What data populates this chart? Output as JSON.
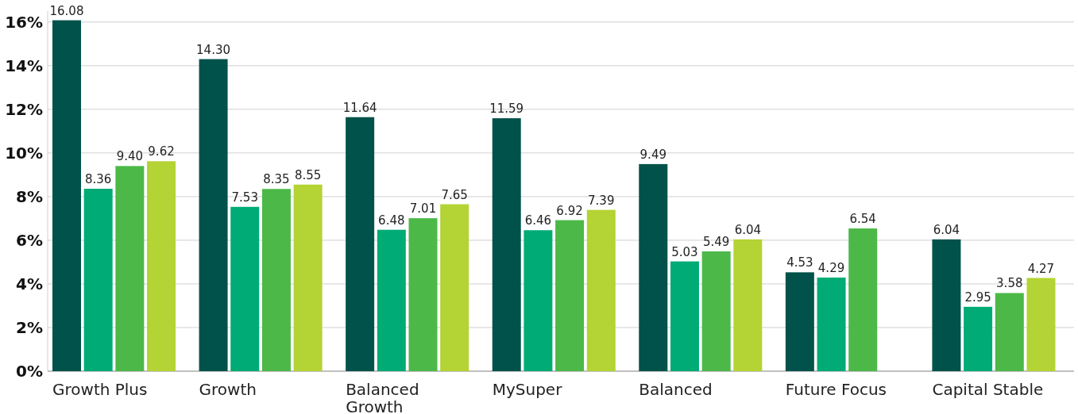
{
  "chart_data": {
    "type": "bar",
    "categories": [
      "Growth Plus",
      "Growth",
      "Balanced Growth",
      "MySuper",
      "Balanced",
      "Future Focus",
      "Capital Stable"
    ],
    "series": [
      {
        "color": "#00524a",
        "values": [
          16.08,
          14.3,
          11.64,
          11.59,
          9.49,
          4.53,
          6.04
        ]
      },
      {
        "color": "#00ab76",
        "values": [
          8.36,
          7.53,
          6.48,
          6.46,
          5.03,
          4.29,
          2.95
        ]
      },
      {
        "color": "#4cb848",
        "values": [
          9.4,
          8.35,
          7.01,
          6.92,
          5.49,
          6.54,
          3.58
        ]
      },
      {
        "color": "#b4d334",
        "values": [
          9.62,
          8.55,
          7.65,
          7.39,
          6.04,
          null,
          4.27
        ]
      }
    ],
    "value_labels": [
      [
        "16.08",
        "14.30",
        "11.64",
        "11.59",
        "9.49",
        "4.53",
        "6.04"
      ],
      [
        "8.36",
        "7.53",
        "6.48",
        "6.46",
        "5.03",
        "4.29",
        "2.95"
      ],
      [
        "9.40",
        "8.35",
        "7.01",
        "6.92",
        "5.49",
        "6.54",
        "3.58"
      ],
      [
        "9.62",
        "8.55",
        "7.65",
        "7.39",
        "6.04",
        null,
        "4.27"
      ]
    ],
    "ylim": [
      0,
      16.5
    ],
    "yticks": [
      {
        "value": 0,
        "label": "0%"
      },
      {
        "value": 2,
        "label": "2%"
      },
      {
        "value": 4,
        "label": "4%"
      },
      {
        "value": 6,
        "label": "6%"
      },
      {
        "value": 8,
        "label": "8%"
      },
      {
        "value": 10,
        "label": "10%"
      },
      {
        "value": 12,
        "label": "12%"
      },
      {
        "value": 14,
        "label": "14%"
      },
      {
        "value": 16,
        "label": "16%"
      }
    ],
    "grid": "y"
  }
}
